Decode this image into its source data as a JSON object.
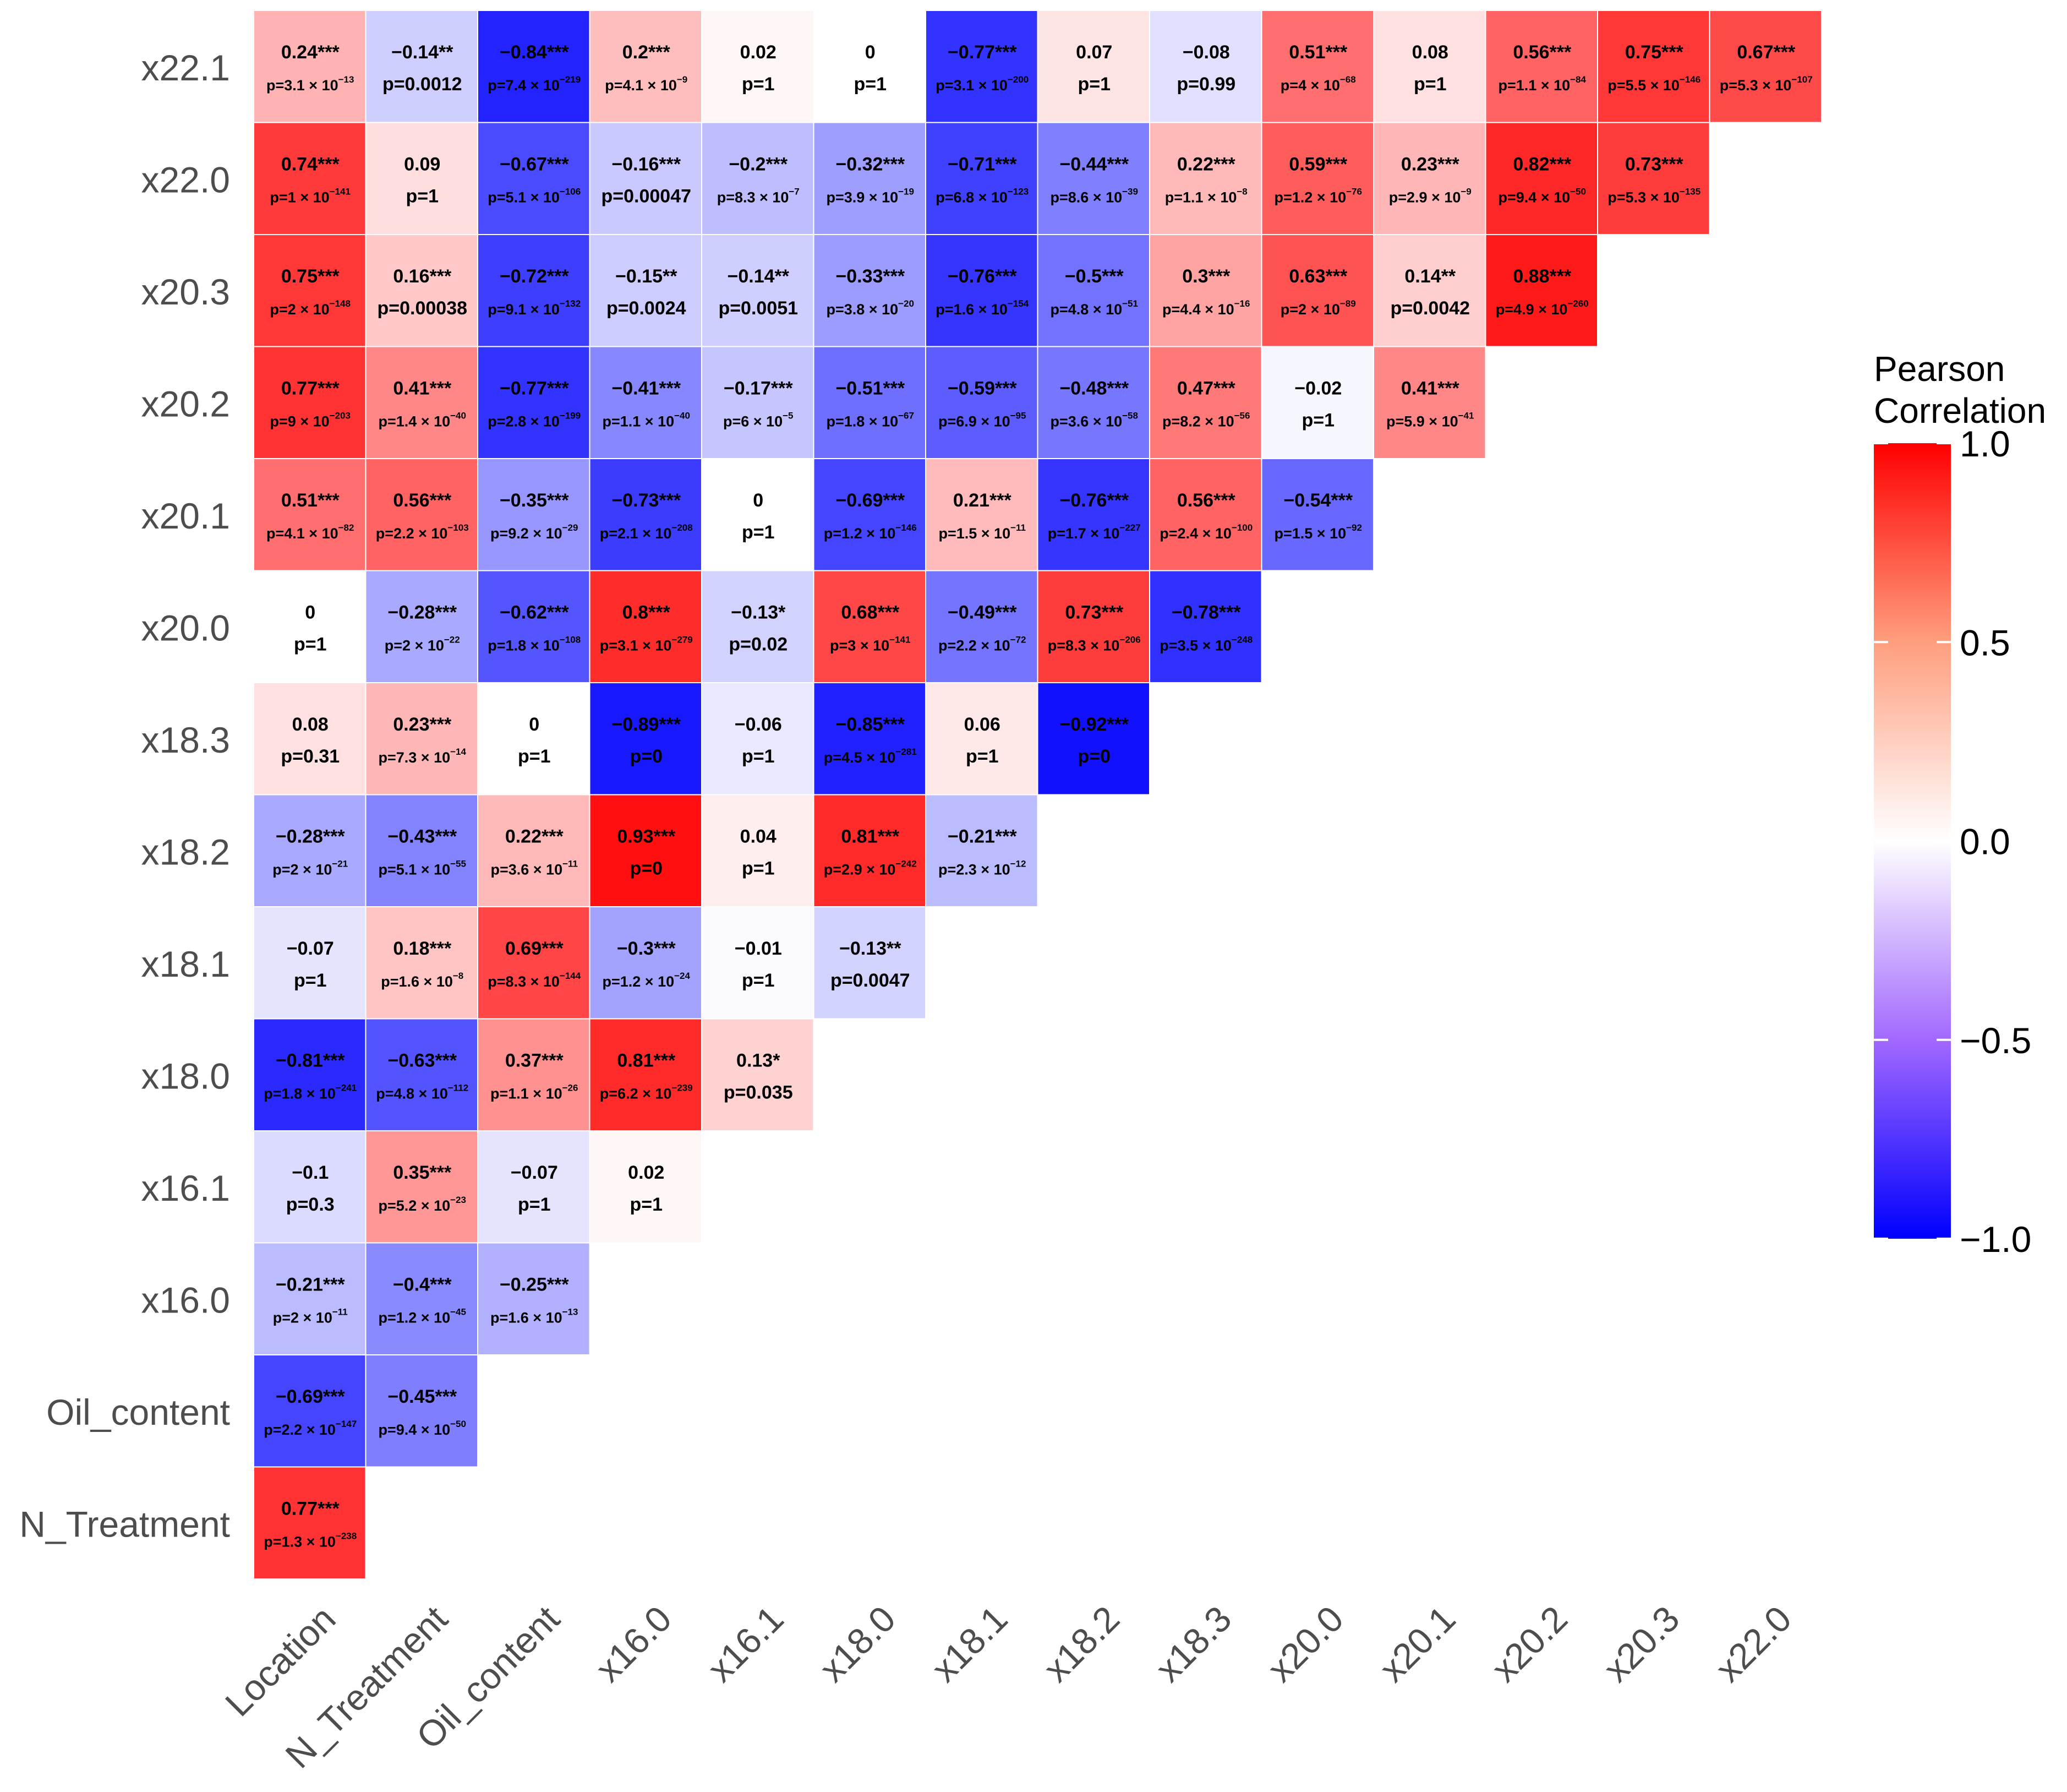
{
  "chart_data": {
    "type": "heatmap",
    "title": "",
    "legend": {
      "title_line1": "Pearson",
      "title_line2": "Correlation",
      "ticks": [
        "1.0",
        "0.5",
        "0.0",
        "−0.5",
        "−1.0"
      ],
      "tick_values": [
        1.0,
        0.5,
        0.0,
        -0.5,
        -1.0
      ],
      "range": [
        -1.0,
        1.0
      ],
      "colors": {
        "low": "#0000ff",
        "mid": "#ffffff",
        "high": "#ff0000"
      },
      "placement": "right"
    },
    "x_categories": [
      "Location",
      "N_Treatment",
      "Oil_content",
      "x16.0",
      "x16.1",
      "x18.0",
      "x18.1",
      "x18.2",
      "x18.3",
      "x20.0",
      "x20.1",
      "x20.2",
      "x20.3",
      "x22.0"
    ],
    "y_categories": [
      "x22.1",
      "x22.0",
      "x20.3",
      "x20.2",
      "x20.1",
      "x20.0",
      "x18.3",
      "x18.2",
      "x18.1",
      "x18.0",
      "x16.1",
      "x16.0",
      "Oil_content",
      "N_Treatment"
    ],
    "rows": [
      {
        "label": "x22.1",
        "cells": [
          {
            "r": 0.24,
            "sig": "***",
            "p": "3.1",
            "pe": "13"
          },
          {
            "r": -0.14,
            "sig": "**",
            "p": "0.0012"
          },
          {
            "r": -0.84,
            "sig": "***",
            "p": "7.4",
            "pe": "219"
          },
          {
            "r": 0.2,
            "sig": "***",
            "p": "4.1",
            "pe": "9"
          },
          {
            "r": 0.02,
            "sig": "",
            "p": "1"
          },
          {
            "r": 0,
            "sig": "",
            "p": "1"
          },
          {
            "r": -0.77,
            "sig": "***",
            "p": "3.1",
            "pe": "200"
          },
          {
            "r": 0.07,
            "sig": "",
            "p": "1"
          },
          {
            "r": -0.08,
            "sig": "",
            "p": "0.99"
          },
          {
            "r": 0.51,
            "sig": "***",
            "p": "4",
            "pe": "68"
          },
          {
            "r": 0.08,
            "sig": "",
            "p": "1"
          },
          {
            "r": 0.56,
            "sig": "***",
            "p": "1.1",
            "pe": "84"
          },
          {
            "r": 0.75,
            "sig": "***",
            "p": "5.5",
            "pe": "146"
          },
          {
            "r": 0.67,
            "sig": "***",
            "p": "5.3",
            "pe": "107"
          }
        ]
      },
      {
        "label": "x22.0",
        "cells": [
          {
            "r": 0.74,
            "sig": "***",
            "p": "1",
            "pe": "141"
          },
          {
            "r": 0.09,
            "sig": "",
            "p": "1"
          },
          {
            "r": -0.67,
            "sig": "***",
            "p": "5.1",
            "pe": "106"
          },
          {
            "r": -0.16,
            "sig": "***",
            "p": "0.00047"
          },
          {
            "r": -0.2,
            "sig": "***",
            "p": "8.3",
            "pe": "7"
          },
          {
            "r": -0.32,
            "sig": "***",
            "p": "3.9",
            "pe": "19"
          },
          {
            "r": -0.71,
            "sig": "***",
            "p": "6.8",
            "pe": "123"
          },
          {
            "r": -0.44,
            "sig": "***",
            "p": "8.6",
            "pe": "39"
          },
          {
            "r": 0.22,
            "sig": "***",
            "p": "1.1",
            "pe": "8"
          },
          {
            "r": 0.59,
            "sig": "***",
            "p": "1.2",
            "pe": "76"
          },
          {
            "r": 0.23,
            "sig": "***",
            "p": "2.9",
            "pe": "9"
          },
          {
            "r": 0.82,
            "sig": "***",
            "p": "9.4",
            "pe": "50"
          },
          {
            "r": 0.73,
            "sig": "***",
            "p": "5.3",
            "pe": "135"
          }
        ]
      },
      {
        "label": "x20.3",
        "cells": [
          {
            "r": 0.75,
            "sig": "***",
            "p": "2",
            "pe": "148"
          },
          {
            "r": 0.16,
            "sig": "***",
            "p": "0.00038"
          },
          {
            "r": -0.72,
            "sig": "***",
            "p": "9.1",
            "pe": "132"
          },
          {
            "r": -0.15,
            "sig": "**",
            "p": "0.0024"
          },
          {
            "r": -0.14,
            "sig": "**",
            "p": "0.0051"
          },
          {
            "r": -0.33,
            "sig": "***",
            "p": "3.8",
            "pe": "20"
          },
          {
            "r": -0.76,
            "sig": "***",
            "p": "1.6",
            "pe": "154"
          },
          {
            "r": -0.5,
            "sig": "***",
            "p": "4.8",
            "pe": "51"
          },
          {
            "r": 0.3,
            "sig": "***",
            "p": "4.4",
            "pe": "16"
          },
          {
            "r": 0.63,
            "sig": "***",
            "p": "2",
            "pe": "89"
          },
          {
            "r": 0.14,
            "sig": "**",
            "p": "0.0042"
          },
          {
            "r": 0.88,
            "sig": "***",
            "p": "4.9",
            "pe": "260"
          }
        ]
      },
      {
        "label": "x20.2",
        "cells": [
          {
            "r": 0.77,
            "sig": "***",
            "p": "9",
            "pe": "203"
          },
          {
            "r": 0.41,
            "sig": "***",
            "p": "1.4",
            "pe": "40"
          },
          {
            "r": -0.77,
            "sig": "***",
            "p": "2.8",
            "pe": "199"
          },
          {
            "r": -0.41,
            "sig": "***",
            "p": "1.1",
            "pe": "40"
          },
          {
            "r": -0.17,
            "sig": "***",
            "p": "6",
            "pe": "5"
          },
          {
            "r": -0.51,
            "sig": "***",
            "p": "1.8",
            "pe": "67"
          },
          {
            "r": -0.59,
            "sig": "***",
            "p": "6.9",
            "pe": "95"
          },
          {
            "r": -0.48,
            "sig": "***",
            "p": "3.6",
            "pe": "58"
          },
          {
            "r": 0.47,
            "sig": "***",
            "p": "8.2",
            "pe": "56"
          },
          {
            "r": -0.02,
            "sig": "",
            "p": "1"
          },
          {
            "r": 0.41,
            "sig": "***",
            "p": "5.9",
            "pe": "41"
          }
        ]
      },
      {
        "label": "x20.1",
        "cells": [
          {
            "r": 0.51,
            "sig": "***",
            "p": "4.1",
            "pe": "82"
          },
          {
            "r": 0.56,
            "sig": "***",
            "p": "2.2",
            "pe": "103"
          },
          {
            "r": -0.35,
            "sig": "***",
            "p": "9.2",
            "pe": "29"
          },
          {
            "r": -0.73,
            "sig": "***",
            "p": "2.1",
            "pe": "208"
          },
          {
            "r": 0,
            "sig": "",
            "p": "1"
          },
          {
            "r": -0.69,
            "sig": "***",
            "p": "1.2",
            "pe": "146"
          },
          {
            "r": 0.21,
            "sig": "***",
            "p": "1.5",
            "pe": "11"
          },
          {
            "r": -0.76,
            "sig": "***",
            "p": "1.7",
            "pe": "227"
          },
          {
            "r": 0.56,
            "sig": "***",
            "p": "2.4",
            "pe": "100"
          },
          {
            "r": -0.54,
            "sig": "***",
            "p": "1.5",
            "pe": "92"
          }
        ]
      },
      {
        "label": "x20.0",
        "cells": [
          {
            "r": 0,
            "sig": "",
            "p": "1"
          },
          {
            "r": -0.28,
            "sig": "***",
            "p": "2",
            "pe": "22"
          },
          {
            "r": -0.62,
            "sig": "***",
            "p": "1.8",
            "pe": "108"
          },
          {
            "r": 0.8,
            "sig": "***",
            "p": "3.1",
            "pe": "279"
          },
          {
            "r": -0.13,
            "sig": "*",
            "p": "0.02"
          },
          {
            "r": 0.68,
            "sig": "***",
            "p": "3",
            "pe": "141"
          },
          {
            "r": -0.49,
            "sig": "***",
            "p": "2.2",
            "pe": "72"
          },
          {
            "r": 0.73,
            "sig": "***",
            "p": "8.3",
            "pe": "206"
          },
          {
            "r": -0.78,
            "sig": "***",
            "p": "3.5",
            "pe": "248"
          }
        ]
      },
      {
        "label": "x18.3",
        "cells": [
          {
            "r": 0.08,
            "sig": "",
            "p": "0.31"
          },
          {
            "r": 0.23,
            "sig": "***",
            "p": "7.3",
            "pe": "14"
          },
          {
            "r": 0,
            "sig": "",
            "p": "1"
          },
          {
            "r": -0.89,
            "sig": "***",
            "p": "0"
          },
          {
            "r": -0.06,
            "sig": "",
            "p": "1"
          },
          {
            "r": -0.85,
            "sig": "***",
            "p": "4.5",
            "pe": "281"
          },
          {
            "r": 0.06,
            "sig": "",
            "p": "1"
          },
          {
            "r": -0.92,
            "sig": "***",
            "p": "0"
          }
        ]
      },
      {
        "label": "x18.2",
        "cells": [
          {
            "r": -0.28,
            "sig": "***",
            "p": "2",
            "pe": "21"
          },
          {
            "r": -0.43,
            "sig": "***",
            "p": "5.1",
            "pe": "55"
          },
          {
            "r": 0.22,
            "sig": "***",
            "p": "3.6",
            "pe": "11"
          },
          {
            "r": 0.93,
            "sig": "***",
            "p": "0"
          },
          {
            "r": 0.04,
            "sig": "",
            "p": "1"
          },
          {
            "r": 0.81,
            "sig": "***",
            "p": "2.9",
            "pe": "242"
          },
          {
            "r": -0.21,
            "sig": "***",
            "p": "2.3",
            "pe": "12"
          }
        ]
      },
      {
        "label": "x18.1",
        "cells": [
          {
            "r": -0.07,
            "sig": "",
            "p": "1"
          },
          {
            "r": 0.18,
            "sig": "***",
            "p": "1.6",
            "pe": "8"
          },
          {
            "r": 0.69,
            "sig": "***",
            "p": "8.3",
            "pe": "144"
          },
          {
            "r": -0.3,
            "sig": "***",
            "p": "1.2",
            "pe": "24"
          },
          {
            "r": -0.01,
            "sig": "",
            "p": "1"
          },
          {
            "r": -0.13,
            "sig": "**",
            "p": "0.0047"
          }
        ]
      },
      {
        "label": "x18.0",
        "cells": [
          {
            "r": -0.81,
            "sig": "***",
            "p": "1.8",
            "pe": "241"
          },
          {
            "r": -0.63,
            "sig": "***",
            "p": "4.8",
            "pe": "112"
          },
          {
            "r": 0.37,
            "sig": "***",
            "p": "1.1",
            "pe": "26"
          },
          {
            "r": 0.81,
            "sig": "***",
            "p": "6.2",
            "pe": "239"
          },
          {
            "r": 0.13,
            "sig": "*",
            "p": "0.035"
          }
        ]
      },
      {
        "label": "x16.1",
        "cells": [
          {
            "r": -0.1,
            "sig": "",
            "p": "0.3"
          },
          {
            "r": 0.35,
            "sig": "***",
            "p": "5.2",
            "pe": "23"
          },
          {
            "r": -0.07,
            "sig": "",
            "p": "1"
          },
          {
            "r": 0.02,
            "sig": "",
            "p": "1"
          }
        ]
      },
      {
        "label": "x16.0",
        "cells": [
          {
            "r": -0.21,
            "sig": "***",
            "p": "2",
            "pe": "11"
          },
          {
            "r": -0.4,
            "sig": "***",
            "p": "1.2",
            "pe": "45"
          },
          {
            "r": -0.25,
            "sig": "***",
            "p": "1.6",
            "pe": "13"
          }
        ]
      },
      {
        "label": "Oil_content",
        "cells": [
          {
            "r": -0.69,
            "sig": "***",
            "p": "2.2",
            "pe": "147"
          },
          {
            "r": -0.45,
            "sig": "***",
            "p": "9.4",
            "pe": "50"
          }
        ]
      },
      {
        "label": "N_Treatment",
        "cells": [
          {
            "r": 0.77,
            "sig": "***",
            "p": "1.3",
            "pe": "238"
          }
        ]
      }
    ]
  }
}
